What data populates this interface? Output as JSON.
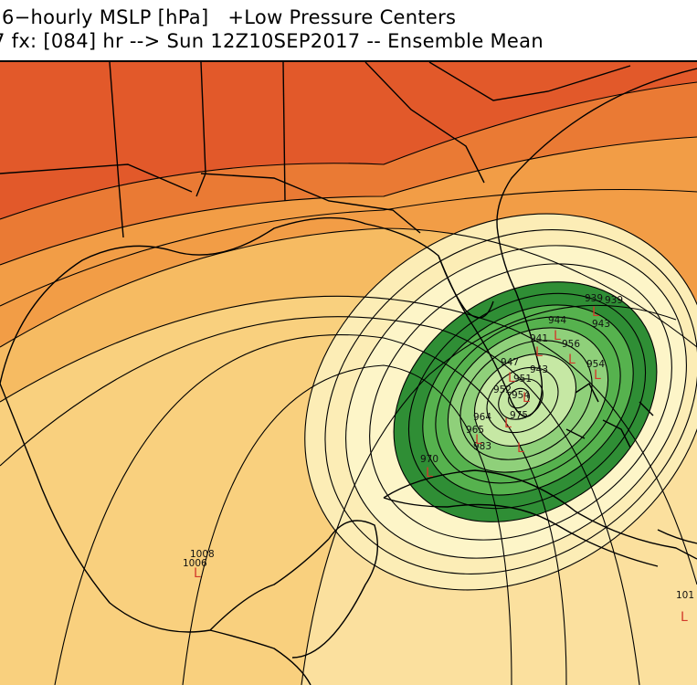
{
  "header": {
    "line1": "6−hourly MSLP [hPa]   +Low Pressure Centers",
    "line2": "7 fx: [084] hr --> Sun 12Z10SEP2017 -- Ensemble Mean"
  },
  "map": {
    "type": "pressure-contour-map",
    "center_marker": "L",
    "fill_colors": [
      "#e2592a",
      "#ea7a34",
      "#f29d46",
      "#f6bb62",
      "#f9d07e",
      "#fbe09e",
      "#fcedb6",
      "#fdf5c8",
      "#c6e8a4",
      "#8fd07a",
      "#56b24e",
      "#2f8e35"
    ],
    "line_color": "#000000",
    "low_center_color": "#d23a2a",
    "low_center_labels": [
      "939",
      "939",
      "944",
      "943",
      "941",
      "956",
      "954",
      "947",
      "943",
      "951",
      "952",
      "954",
      "975",
      "964",
      "965",
      "983",
      "970",
      "1008",
      "1006",
      "101"
    ]
  }
}
